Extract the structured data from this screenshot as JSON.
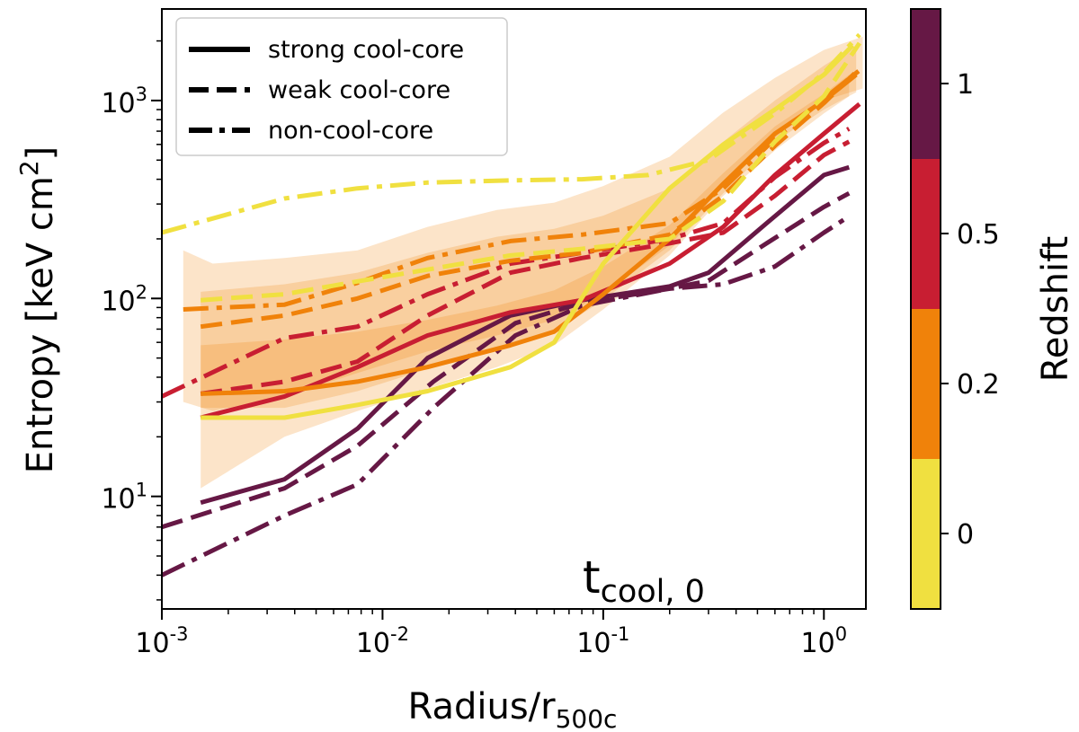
{
  "chart_data": {
    "type": "line",
    "xlabel": "Radius/r",
    "xlabel_sub": "500c",
    "ylabel": "Entropy [keV cm",
    "ylabel_sup": "2",
    "ylabel_end": "]",
    "xscale": "log",
    "yscale": "log",
    "xlim": [
      0.001,
      1.55
    ],
    "ylim": [
      2.7,
      2900
    ],
    "x_ticks": [
      {
        "value": 0.001,
        "base": "10",
        "exp": "-3"
      },
      {
        "value": 0.01,
        "base": "10",
        "exp": "-2"
      },
      {
        "value": 0.1,
        "base": "10",
        "exp": "-1"
      },
      {
        "value": 1,
        "base": "10",
        "exp": "0"
      }
    ],
    "y_ticks": [
      {
        "value": 10,
        "base": "10",
        "exp": "1"
      },
      {
        "value": 100,
        "base": "10",
        "exp": "2"
      },
      {
        "value": 1000,
        "base": "10",
        "exp": "3"
      }
    ],
    "annotation": {
      "main": "t",
      "sub": "cool, 0"
    },
    "legend": {
      "location": "top-left",
      "entries": [
        {
          "label": "strong cool-core",
          "style": "solid"
        },
        {
          "label": "weak cool-core",
          "style": "dashed"
        },
        {
          "label": "non-cool-core",
          "style": "dashdot"
        }
      ]
    },
    "colorbar": {
      "label": "Redshift",
      "bins": [
        {
          "label": "0",
          "color": "#f0e040"
        },
        {
          "label": "0.2",
          "color": "#f0820a"
        },
        {
          "label": "0.5",
          "color": "#c81e32"
        },
        {
          "label": "1",
          "color": "#661845"
        }
      ]
    },
    "bands": [
      {
        "x": [
          0.00125,
          0.0017,
          0.0036,
          0.0077,
          0.016,
          0.033,
          0.06,
          0.1,
          0.2,
          0.35,
          0.6,
          1.0,
          1.5
        ],
        "lower": [
          30,
          27,
          32,
          42,
          54,
          65,
          78,
          105,
          185,
          370,
          650,
          1000,
          1150
        ],
        "upper": [
          175,
          150,
          160,
          175,
          230,
          280,
          305,
          370,
          520,
          870,
          1300,
          1800,
          2100
        ]
      },
      {
        "x": [
          0.0015,
          0.0036,
          0.0077,
          0.016,
          0.033,
          0.06,
          0.1,
          0.2,
          0.35,
          0.6,
          1.0,
          1.4
        ],
        "lower": [
          28,
          28,
          34,
          44,
          56,
          68,
          98,
          175,
          340,
          620,
          900,
          1100
        ],
        "upper": [
          108,
          118,
          135,
          170,
          205,
          225,
          262,
          360,
          620,
          1000,
          1500,
          1900
        ]
      },
      {
        "x": [
          0.0015,
          0.0036,
          0.0077,
          0.016,
          0.033,
          0.06,
          0.1,
          0.2,
          0.35,
          0.6,
          1.0,
          1.3
        ],
        "lower": [
          11,
          20,
          27,
          35,
          45,
          58,
          88,
          165,
          330,
          560,
          860,
          1050
        ],
        "upper": [
          58,
          62,
          68,
          78,
          92,
          110,
          145,
          235,
          430,
          740,
          1080,
          1350
        ]
      }
    ],
    "series": [
      {
        "name": "z=1 strong cool-core",
        "redshift": "1",
        "style": "solid",
        "color": "#661845",
        "x": [
          0.0015,
          0.0036,
          0.0077,
          0.016,
          0.038,
          0.08,
          0.2,
          0.3,
          0.55,
          1.0,
          1.3
        ],
        "y": [
          9.3,
          12.2,
          22,
          50,
          82,
          98,
          115,
          135,
          240,
          420,
          460
        ]
      },
      {
        "name": "z=1 weak cool-core",
        "redshift": "1",
        "style": "dashed",
        "color": "#661845",
        "x": [
          0.001,
          0.0036,
          0.0077,
          0.017,
          0.04,
          0.08,
          0.2,
          0.3,
          0.55,
          1.0,
          1.3
        ],
        "y": [
          7,
          11,
          18,
          38,
          75,
          95,
          112,
          123,
          190,
          290,
          340
        ]
      },
      {
        "name": "z=1 non-cool-core",
        "redshift": "1",
        "style": "dashdot",
        "color": "#661845",
        "x": [
          0.001,
          0.0036,
          0.0077,
          0.017,
          0.04,
          0.08,
          0.2,
          0.35,
          0.6,
          1.0,
          1.3
        ],
        "y": [
          4,
          8,
          11.5,
          28,
          65,
          92,
          112,
          118,
          145,
          215,
          260
        ]
      },
      {
        "name": "z=0.5 strong cool-core",
        "redshift": "0.5",
        "style": "solid",
        "color": "#c81e32",
        "x": [
          0.0015,
          0.0036,
          0.0077,
          0.016,
          0.038,
          0.08,
          0.2,
          0.35,
          0.6,
          1.0,
          1.45
        ],
        "y": [
          25,
          32,
          45,
          65,
          85,
          98,
          150,
          230,
          420,
          680,
          960
        ]
      },
      {
        "name": "z=0.5 weak cool-core",
        "redshift": "0.5",
        "style": "dashed",
        "color": "#c81e32",
        "x": [
          0.0015,
          0.0036,
          0.0077,
          0.016,
          0.038,
          0.08,
          0.2,
          0.35,
          0.6,
          1.0,
          1.3
        ],
        "y": [
          33,
          38,
          48,
          82,
          135,
          160,
          190,
          215,
          330,
          530,
          620
        ]
      },
      {
        "name": "z=0.5 non-cool-core",
        "redshift": "0.5",
        "style": "dashdot",
        "color": "#c81e32",
        "x": [
          0.001,
          0.0036,
          0.0077,
          0.016,
          0.038,
          0.08,
          0.2,
          0.35,
          0.6,
          1.0,
          1.3
        ],
        "y": [
          32,
          63,
          72,
          105,
          150,
          170,
          200,
          240,
          410,
          610,
          720
        ]
      },
      {
        "name": "z=0.2 strong cool-core",
        "redshift": "0.2",
        "style": "solid",
        "color": "#f0820a",
        "x": [
          0.0015,
          0.0036,
          0.0077,
          0.016,
          0.038,
          0.06,
          0.1,
          0.2,
          0.35,
          0.6,
          1.0,
          1.4
        ],
        "y": [
          33,
          34,
          38,
          45,
          58,
          68,
          105,
          200,
          380,
          680,
          1000,
          1350
        ]
      },
      {
        "name": "z=0.2 weak cool-core",
        "redshift": "0.2",
        "style": "dashed",
        "color": "#f0820a",
        "x": [
          0.0015,
          0.0036,
          0.0077,
          0.016,
          0.038,
          0.08,
          0.2,
          0.35,
          0.6,
          1.0,
          1.45
        ],
        "y": [
          72,
          82,
          100,
          130,
          155,
          170,
          210,
          330,
          590,
          970,
          1450
        ]
      },
      {
        "name": "z=0.2 non-cool-core",
        "redshift": "0.2",
        "style": "dashdot",
        "color": "#f0820a",
        "x": [
          0.00125,
          0.0036,
          0.0077,
          0.016,
          0.038,
          0.08,
          0.2,
          0.35,
          0.6,
          1.0,
          1.45
        ],
        "y": [
          88,
          93,
          120,
          160,
          195,
          210,
          240,
          360,
          640,
          1020,
          1420
        ]
      },
      {
        "name": "z=0 strong cool-core",
        "redshift": "0",
        "style": "solid",
        "color": "#f0e040",
        "x": [
          0.0015,
          0.0036,
          0.0077,
          0.016,
          0.038,
          0.06,
          0.1,
          0.2,
          0.35,
          0.6,
          1.0,
          1.35
        ],
        "y": [
          25,
          25,
          29,
          34,
          45,
          60,
          150,
          360,
          600,
          900,
          1350,
          1900
        ]
      },
      {
        "name": "z=0 weak cool-core",
        "redshift": "0",
        "style": "dashed",
        "color": "#f0e040",
        "x": [
          0.0015,
          0.0036,
          0.0077,
          0.016,
          0.038,
          0.08,
          0.2,
          0.35,
          0.6,
          1.0,
          1.45
        ],
        "y": [
          98,
          105,
          122,
          140,
          165,
          178,
          200,
          310,
          620,
          1050,
          1950
        ]
      },
      {
        "name": "z=0 non-cool-core",
        "redshift": "0",
        "style": "dashdot",
        "color": "#f0e040",
        "x": [
          0.001,
          0.0036,
          0.0077,
          0.016,
          0.038,
          0.08,
          0.16,
          0.3,
          0.6,
          1.0,
          1.45
        ],
        "y": [
          215,
          320,
          360,
          385,
          395,
          400,
          420,
          500,
          860,
          1380,
          2150
        ]
      }
    ]
  }
}
